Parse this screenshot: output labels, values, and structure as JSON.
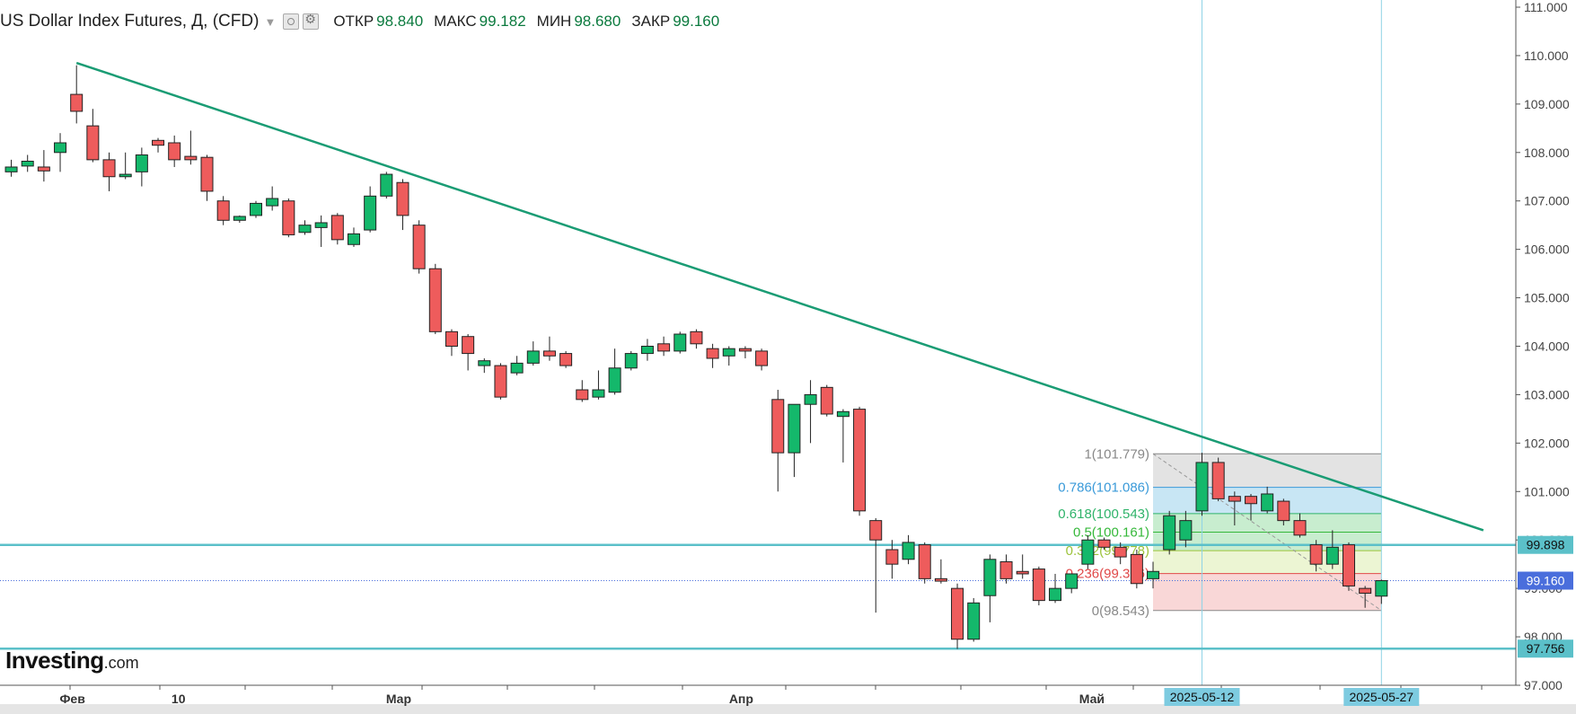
{
  "header": {
    "title": "US Dollar Index Futures, Д, (CFD)",
    "open_label": "ОТКР",
    "open_value": "98.840",
    "high_label": "МАКС",
    "high_value": "99.182",
    "low_label": "МИН",
    "low_value": "98.680",
    "close_label": "ЗАКР",
    "close_value": "99.160"
  },
  "logo": {
    "brand": "Investing",
    "suffix": ".com"
  },
  "colors": {
    "up": "#14b86b",
    "down": "#ee5c5c",
    "trendline": "#1a9c74",
    "hline": "#5bc0c9",
    "price_badge": "#4a6edc",
    "fib_top": "#dadada",
    "fib_blue": "#b6ddf0",
    "fib_green": "#b6e7bf",
    "fib_yellow": "#e6f2c4",
    "fib_red": "#f7c9c9"
  },
  "chart_data": {
    "type": "candlestick",
    "y_range": [
      97.0,
      111.0
    ],
    "y_ticks": [
      "97.000",
      "98.000",
      "99.000",
      "100.000",
      "101.000",
      "102.000",
      "103.000",
      "104.000",
      "105.000",
      "106.000",
      "107.000",
      "108.000",
      "109.000",
      "110.000",
      "111.000"
    ],
    "x_labels": [
      {
        "label": "Фев",
        "x": 0
      },
      {
        "label": "10",
        "x": 1.3
      },
      {
        "label": "Мар",
        "x": 4
      },
      {
        "label": "Апр",
        "x": 8.2
      },
      {
        "label": "Май",
        "x": 12.5
      }
    ],
    "x_range": [
      -0.8,
      17.5
    ],
    "candles": [
      {
        "x": -0.75,
        "o": 107.6,
        "h": 107.85,
        "l": 107.5,
        "c": 107.7
      },
      {
        "x": -0.55,
        "o": 107.72,
        "h": 107.95,
        "l": 107.6,
        "c": 107.82
      },
      {
        "x": -0.35,
        "o": 107.7,
        "h": 108.05,
        "l": 107.4,
        "c": 107.62
      },
      {
        "x": -0.15,
        "o": 108.0,
        "h": 108.4,
        "l": 107.6,
        "c": 108.2
      },
      {
        "x": 0.05,
        "o": 109.2,
        "h": 109.8,
        "l": 108.6,
        "c": 108.85
      },
      {
        "x": 0.25,
        "o": 108.55,
        "h": 108.9,
        "l": 107.8,
        "c": 107.85
      },
      {
        "x": 0.45,
        "o": 107.85,
        "h": 108.0,
        "l": 107.2,
        "c": 107.5
      },
      {
        "x": 0.65,
        "o": 107.5,
        "h": 108.0,
        "l": 107.45,
        "c": 107.55
      },
      {
        "x": 0.85,
        "o": 107.6,
        "h": 108.1,
        "l": 107.3,
        "c": 107.95
      },
      {
        "x": 1.05,
        "o": 108.25,
        "h": 108.3,
        "l": 108.0,
        "c": 108.15
      },
      {
        "x": 1.25,
        "o": 108.2,
        "h": 108.35,
        "l": 107.7,
        "c": 107.85
      },
      {
        "x": 1.45,
        "o": 107.92,
        "h": 108.45,
        "l": 107.75,
        "c": 107.85
      },
      {
        "x": 1.65,
        "o": 107.9,
        "h": 107.95,
        "l": 107.0,
        "c": 107.2
      },
      {
        "x": 1.85,
        "o": 107.0,
        "h": 107.1,
        "l": 106.5,
        "c": 106.6
      },
      {
        "x": 2.05,
        "o": 106.6,
        "h": 106.7,
        "l": 106.55,
        "c": 106.68
      },
      {
        "x": 2.25,
        "o": 106.7,
        "h": 107.0,
        "l": 106.65,
        "c": 106.95
      },
      {
        "x": 2.45,
        "o": 106.9,
        "h": 107.3,
        "l": 106.8,
        "c": 107.05
      },
      {
        "x": 2.65,
        "o": 107.0,
        "h": 107.05,
        "l": 106.25,
        "c": 106.3
      },
      {
        "x": 2.85,
        "o": 106.35,
        "h": 106.6,
        "l": 106.3,
        "c": 106.5
      },
      {
        "x": 3.05,
        "o": 106.45,
        "h": 106.7,
        "l": 106.05,
        "c": 106.55
      },
      {
        "x": 3.25,
        "o": 106.7,
        "h": 106.75,
        "l": 106.1,
        "c": 106.2
      },
      {
        "x": 3.45,
        "o": 106.1,
        "h": 106.45,
        "l": 106.05,
        "c": 106.32
      },
      {
        "x": 3.65,
        "o": 106.4,
        "h": 107.3,
        "l": 106.35,
        "c": 107.1
      },
      {
        "x": 3.85,
        "o": 107.1,
        "h": 107.6,
        "l": 107.05,
        "c": 107.55
      },
      {
        "x": 4.05,
        "o": 107.38,
        "h": 107.45,
        "l": 106.4,
        "c": 106.7
      },
      {
        "x": 4.25,
        "o": 106.5,
        "h": 106.6,
        "l": 105.5,
        "c": 105.6
      },
      {
        "x": 4.45,
        "o": 105.6,
        "h": 105.7,
        "l": 104.25,
        "c": 104.3
      },
      {
        "x": 4.65,
        "o": 104.3,
        "h": 104.35,
        "l": 103.8,
        "c": 104.0
      },
      {
        "x": 4.85,
        "o": 104.2,
        "h": 104.25,
        "l": 103.5,
        "c": 103.85
      },
      {
        "x": 5.05,
        "o": 103.6,
        "h": 103.75,
        "l": 103.45,
        "c": 103.7
      },
      {
        "x": 5.25,
        "o": 103.6,
        "h": 103.65,
        "l": 102.9,
        "c": 102.95
      },
      {
        "x": 5.45,
        "o": 103.45,
        "h": 103.8,
        "l": 103.4,
        "c": 103.65
      },
      {
        "x": 5.65,
        "o": 103.65,
        "h": 104.1,
        "l": 103.6,
        "c": 103.9
      },
      {
        "x": 5.85,
        "o": 103.9,
        "h": 104.2,
        "l": 103.7,
        "c": 103.8
      },
      {
        "x": 6.05,
        "o": 103.85,
        "h": 103.9,
        "l": 103.55,
        "c": 103.6
      },
      {
        "x": 6.25,
        "o": 103.1,
        "h": 103.3,
        "l": 102.85,
        "c": 102.9
      },
      {
        "x": 6.45,
        "o": 102.95,
        "h": 103.5,
        "l": 102.9,
        "c": 103.1
      },
      {
        "x": 6.65,
        "o": 103.05,
        "h": 103.95,
        "l": 103.0,
        "c": 103.55
      },
      {
        "x": 6.85,
        "o": 103.55,
        "h": 103.9,
        "l": 103.5,
        "c": 103.85
      },
      {
        "x": 7.05,
        "o": 103.85,
        "h": 104.15,
        "l": 103.7,
        "c": 104.0
      },
      {
        "x": 7.25,
        "o": 104.05,
        "h": 104.2,
        "l": 103.8,
        "c": 103.9
      },
      {
        "x": 7.45,
        "o": 103.9,
        "h": 104.3,
        "l": 103.85,
        "c": 104.25
      },
      {
        "x": 7.65,
        "o": 104.3,
        "h": 104.35,
        "l": 103.95,
        "c": 104.05
      },
      {
        "x": 7.85,
        "o": 103.95,
        "h": 104.05,
        "l": 103.55,
        "c": 103.75
      },
      {
        "x": 8.05,
        "o": 103.8,
        "h": 104.0,
        "l": 103.6,
        "c": 103.95
      },
      {
        "x": 8.25,
        "o": 103.95,
        "h": 104.0,
        "l": 103.75,
        "c": 103.9
      },
      {
        "x": 8.45,
        "o": 103.9,
        "h": 103.95,
        "l": 103.5,
        "c": 103.6
      },
      {
        "x": 8.65,
        "o": 102.9,
        "h": 103.1,
        "l": 101.0,
        "c": 101.8
      },
      {
        "x": 8.85,
        "o": 101.8,
        "h": 102.75,
        "l": 101.3,
        "c": 102.8
      },
      {
        "x": 9.05,
        "o": 102.8,
        "h": 103.3,
        "l": 102.0,
        "c": 103.0
      },
      {
        "x": 9.25,
        "o": 103.15,
        "h": 103.2,
        "l": 102.55,
        "c": 102.6
      },
      {
        "x": 9.45,
        "o": 102.55,
        "h": 102.7,
        "l": 101.6,
        "c": 102.65
      },
      {
        "x": 9.65,
        "o": 102.7,
        "h": 102.75,
        "l": 100.5,
        "c": 100.6
      },
      {
        "x": 9.85,
        "o": 100.4,
        "h": 100.45,
        "l": 98.5,
        "c": 100.0
      },
      {
        "x": 10.05,
        "o": 99.8,
        "h": 100.0,
        "l": 99.2,
        "c": 99.5
      },
      {
        "x": 10.25,
        "o": 99.6,
        "h": 100.1,
        "l": 99.5,
        "c": 99.95
      },
      {
        "x": 10.45,
        "o": 99.9,
        "h": 99.95,
        "l": 99.1,
        "c": 99.2
      },
      {
        "x": 10.65,
        "o": 99.2,
        "h": 99.6,
        "l": 99.1,
        "c": 99.15
      },
      {
        "x": 10.85,
        "o": 99.0,
        "h": 99.1,
        "l": 97.75,
        "c": 97.95
      },
      {
        "x": 11.05,
        "o": 97.95,
        "h": 98.8,
        "l": 97.9,
        "c": 98.7
      },
      {
        "x": 11.25,
        "o": 98.85,
        "h": 99.7,
        "l": 98.3,
        "c": 99.6
      },
      {
        "x": 11.45,
        "o": 99.55,
        "h": 99.7,
        "l": 99.1,
        "c": 99.2
      },
      {
        "x": 11.65,
        "o": 99.35,
        "h": 99.7,
        "l": 99.2,
        "c": 99.3
      },
      {
        "x": 11.85,
        "o": 99.4,
        "h": 99.45,
        "l": 98.65,
        "c": 98.75
      },
      {
        "x": 12.05,
        "o": 98.75,
        "h": 99.3,
        "l": 98.7,
        "c": 99.0
      },
      {
        "x": 12.25,
        "o": 99.0,
        "h": 99.3,
        "l": 98.9,
        "c": 99.3
      },
      {
        "x": 12.45,
        "o": 99.5,
        "h": 100.1,
        "l": 99.4,
        "c": 100.0
      },
      {
        "x": 12.65,
        "o": 100.0,
        "h": 100.05,
        "l": 99.8,
        "c": 99.85
      },
      {
        "x": 12.85,
        "o": 99.85,
        "h": 99.95,
        "l": 99.5,
        "c": 99.65
      },
      {
        "x": 13.05,
        "o": 99.7,
        "h": 99.8,
        "l": 99.0,
        "c": 99.1
      },
      {
        "x": 13.25,
        "o": 99.2,
        "h": 99.55,
        "l": 99.0,
        "c": 99.35
      },
      {
        "x": 13.45,
        "o": 99.8,
        "h": 100.6,
        "l": 99.7,
        "c": 100.5
      },
      {
        "x": 13.65,
        "o": 100.0,
        "h": 100.6,
        "l": 99.85,
        "c": 100.4
      },
      {
        "x": 13.85,
        "o": 100.6,
        "h": 101.8,
        "l": 100.5,
        "c": 101.6
      },
      {
        "x": 14.05,
        "o": 101.6,
        "h": 101.7,
        "l": 100.8,
        "c": 100.85
      },
      {
        "x": 14.25,
        "o": 100.9,
        "h": 101.0,
        "l": 100.3,
        "c": 100.8
      },
      {
        "x": 14.45,
        "o": 100.9,
        "h": 100.95,
        "l": 100.4,
        "c": 100.75
      },
      {
        "x": 14.65,
        "o": 100.6,
        "h": 101.1,
        "l": 100.55,
        "c": 100.95
      },
      {
        "x": 14.85,
        "o": 100.8,
        "h": 100.85,
        "l": 100.3,
        "c": 100.4
      },
      {
        "x": 15.05,
        "o": 100.4,
        "h": 100.55,
        "l": 100.05,
        "c": 100.1
      },
      {
        "x": 15.25,
        "o": 99.9,
        "h": 100.0,
        "l": 99.35,
        "c": 99.5
      },
      {
        "x": 15.45,
        "o": 99.5,
        "h": 100.2,
        "l": 99.4,
        "c": 99.85
      },
      {
        "x": 15.65,
        "o": 99.9,
        "h": 99.95,
        "l": 98.95,
        "c": 99.05
      },
      {
        "x": 15.85,
        "o": 99.0,
        "h": 99.05,
        "l": 98.6,
        "c": 98.9
      },
      {
        "x": 16.05,
        "o": 98.84,
        "h": 99.182,
        "l": 98.68,
        "c": 99.16
      }
    ],
    "trendline": {
      "x1": 0.05,
      "y1": 109.85,
      "x2": 17.3,
      "y2": 100.2
    },
    "horizontal_lines": [
      {
        "value": 99.898,
        "label": "99.898"
      },
      {
        "value": 97.756,
        "label": "97.756"
      }
    ],
    "current_price": {
      "value": 99.16,
      "label": "99.160"
    },
    "fib": {
      "x_start": 13.25,
      "x_end": 16.05,
      "levels": [
        {
          "ratio": 1,
          "value": 101.779,
          "label": "1(101.779)",
          "color": "#888888"
        },
        {
          "ratio": 0.786,
          "value": 101.086,
          "label": "0.786(101.086)",
          "color": "#3a9ad9"
        },
        {
          "ratio": 0.618,
          "value": 100.543,
          "label": "0.618(100.543)",
          "color": "#2fb36a"
        },
        {
          "ratio": 0.5,
          "value": 100.161,
          "label": "0.5(100.161)",
          "color": "#35b83a"
        },
        {
          "ratio": 0.382,
          "value": 99.778,
          "label": "0.382(99.778)",
          "color": "#9cc33a"
        },
        {
          "ratio": 0.236,
          "value": 99.306,
          "label": "0.236(99.306)",
          "color": "#e04848"
        },
        {
          "ratio": 0,
          "value": 98.543,
          "label": "0(98.543)",
          "color": "#888888"
        }
      ]
    },
    "vertical_markers": [
      {
        "x": 13.85,
        "label": "2025-05-12"
      },
      {
        "x": 16.05,
        "label": "2025-05-27"
      }
    ]
  }
}
